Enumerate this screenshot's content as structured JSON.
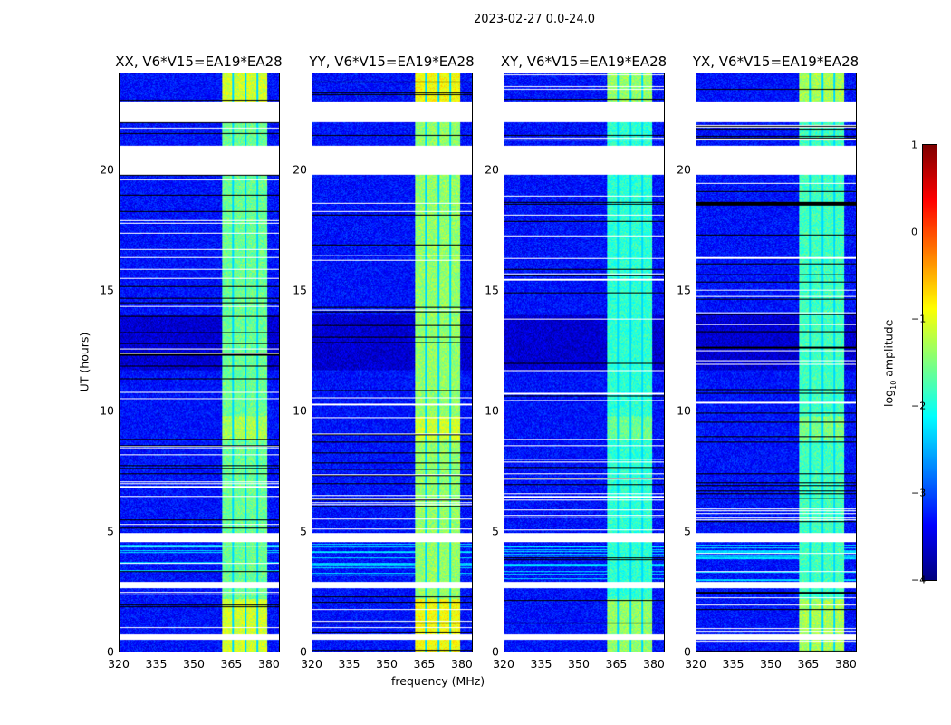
{
  "suptitle": "2023-02-27 0.0-24.0",
  "chart_data": {
    "type": "heatmap",
    "panels": [
      {
        "title": "XX, V6*V15=EA19*EA28",
        "band_peak_log": -1.0
      },
      {
        "title": "YY, V6*V15=EA19*EA28",
        "band_peak_log": -0.8
      },
      {
        "title": "XY, V6*V15=EA19*EA28",
        "band_peak_log": -1.3
      },
      {
        "title": "YX, V6*V15=EA19*EA28",
        "band_peak_log": -1.2
      }
    ],
    "xlabel": "frequency (MHz)",
    "ylabel": "UT (hours)",
    "xlim": [
      320,
      384
    ],
    "ylim": [
      0,
      24
    ],
    "xticks": [
      "320",
      "335",
      "350",
      "365",
      "380"
    ],
    "xtick_values": [
      320,
      335,
      350,
      365,
      380
    ],
    "yticks": [
      "0",
      "5",
      "10",
      "15",
      "20"
    ],
    "ytick_values": [
      0,
      5,
      10,
      15,
      20
    ],
    "background_log": -3.3,
    "rfi_band_mhz": [
      361,
      379
    ],
    "flagged_hours": [
      [
        0.5,
        0.75
      ],
      [
        2.65,
        2.9
      ],
      [
        4.55,
        4.95
      ],
      [
        19.8,
        21.0
      ],
      [
        22.0,
        22.85
      ]
    ],
    "colorbar": {
      "label": "log10 amplitude",
      "label_main": "log",
      "label_sub": "10",
      "label_rest": " amplitude",
      "range": [
        -4,
        1
      ],
      "ticks": [
        "1",
        "0",
        "−1",
        "−2",
        "−3",
        "−4"
      ],
      "tick_values": [
        1,
        0,
        -1,
        -2,
        -3,
        -4
      ],
      "colormap": "jet"
    }
  }
}
